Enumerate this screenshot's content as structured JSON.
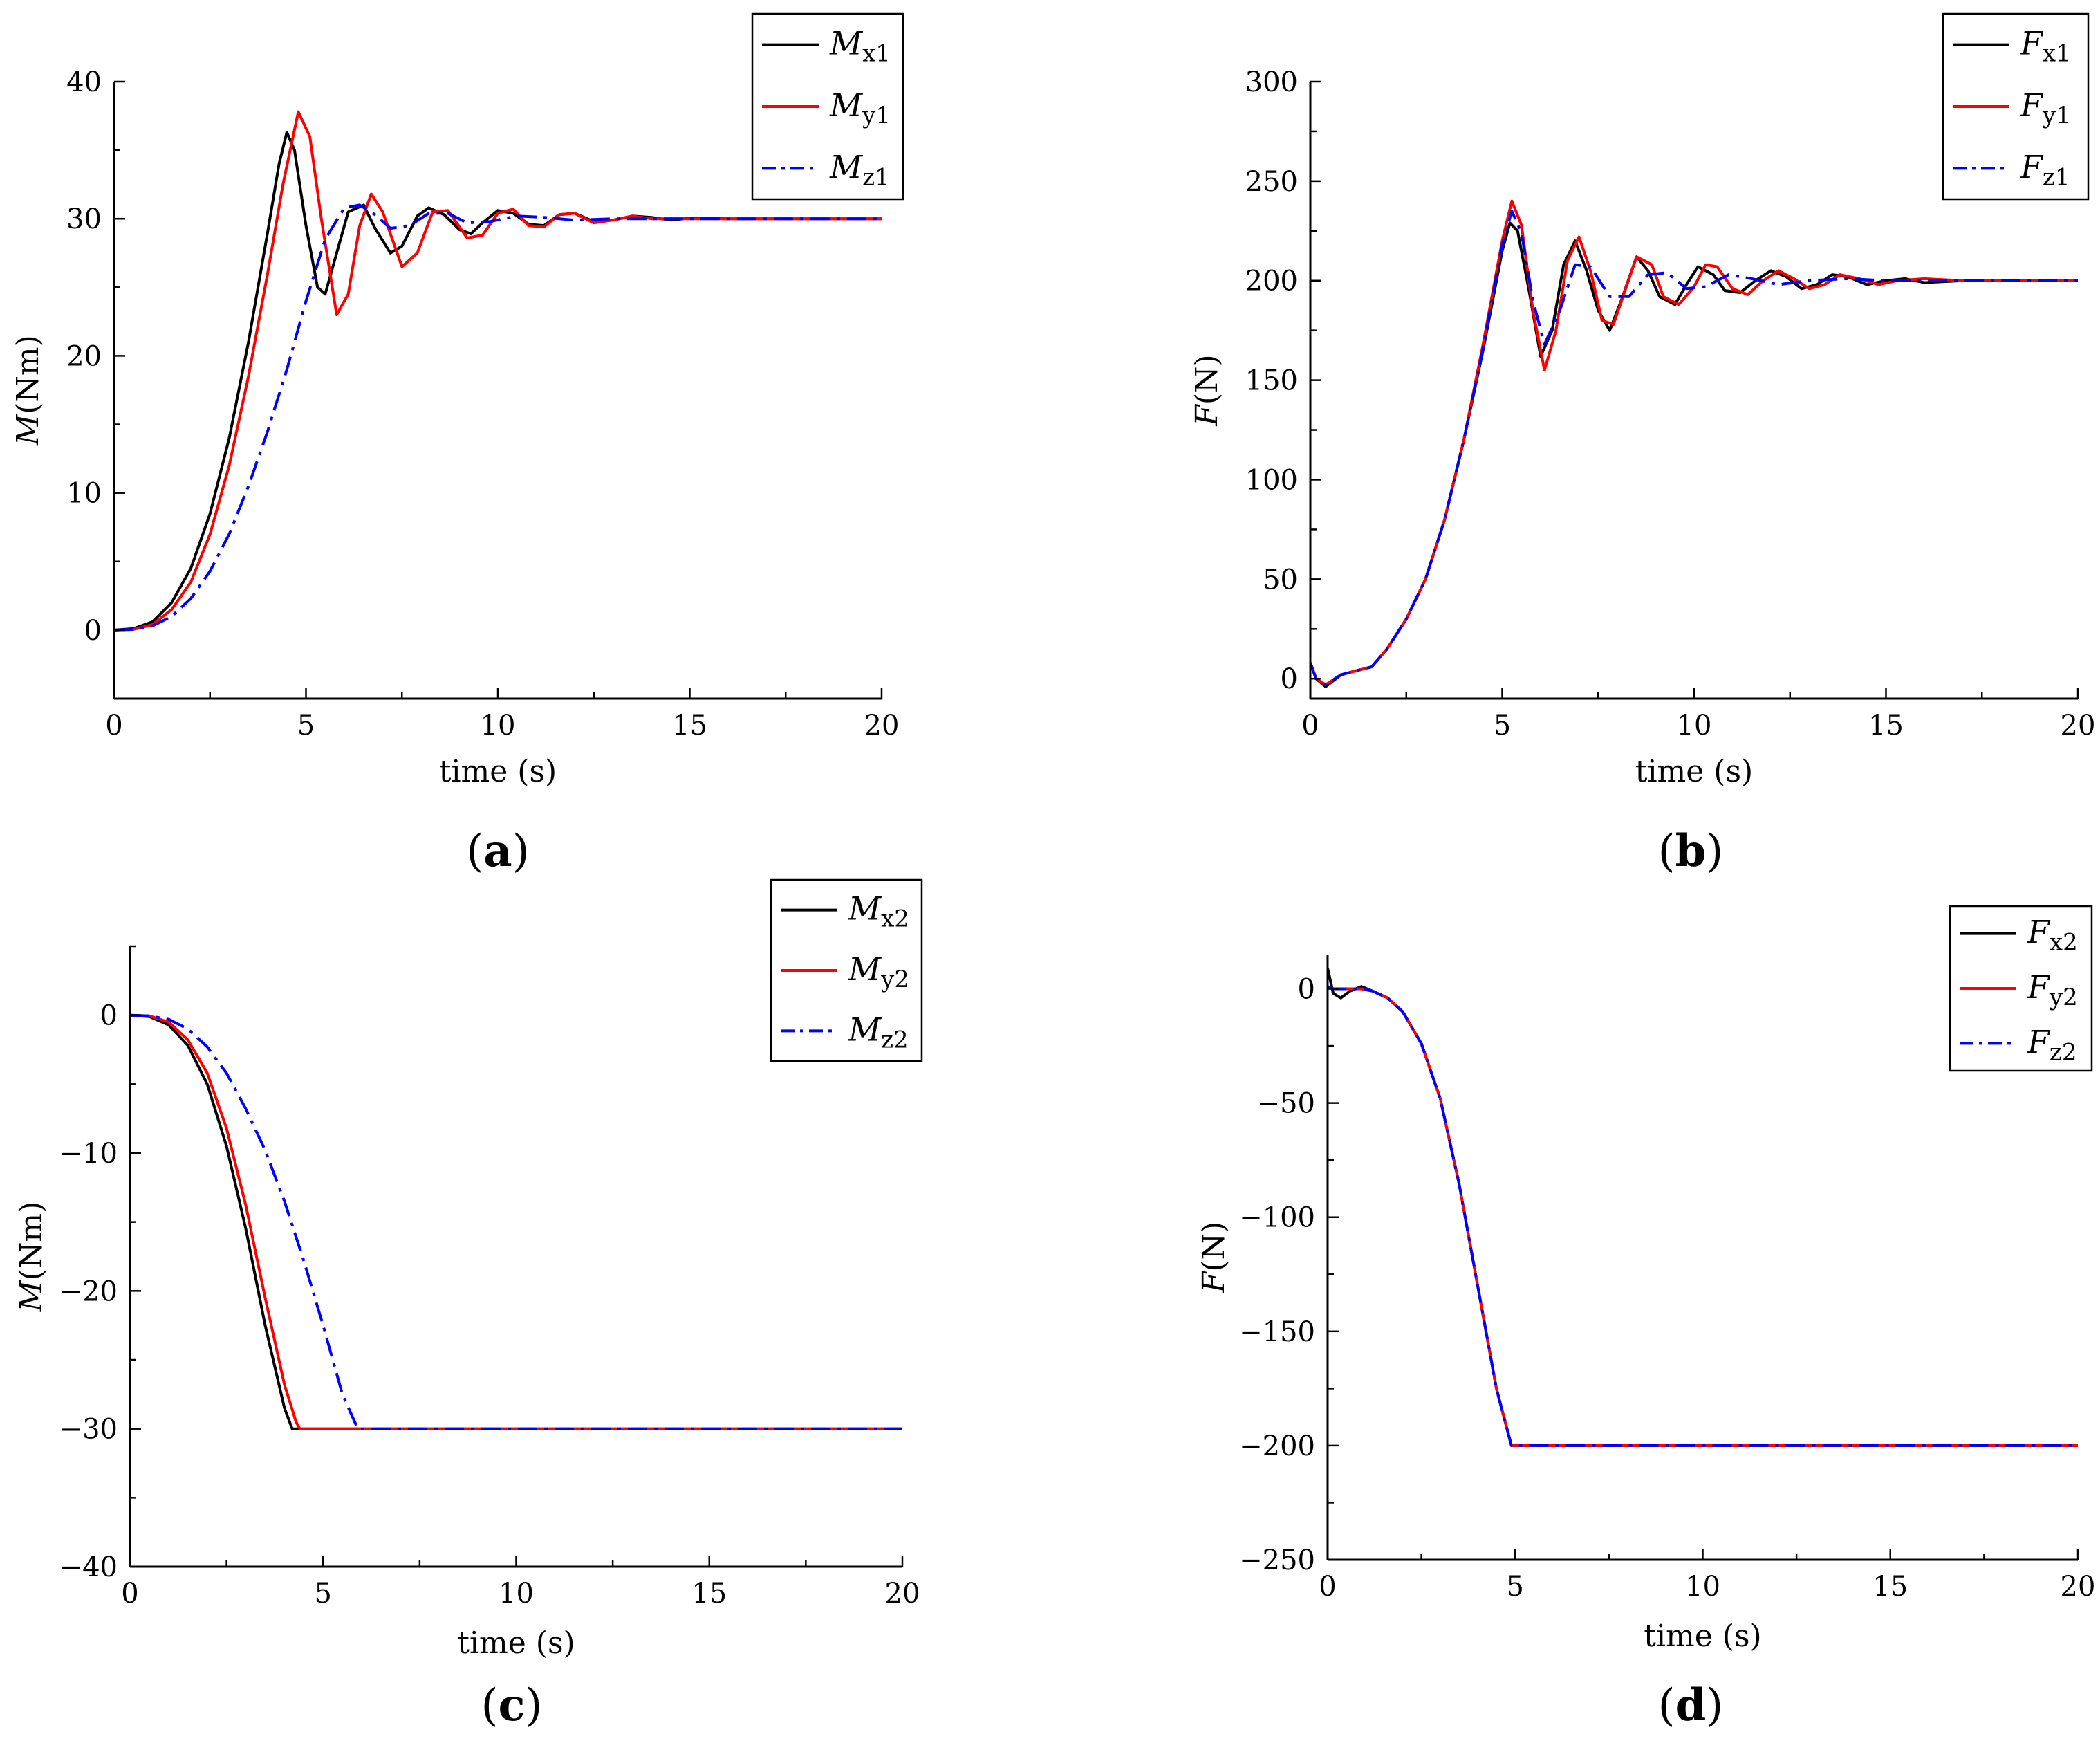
{
  "chart_data": [
    {
      "id": "a",
      "type": "line",
      "panel_label": "a",
      "xlabel": "time (s)",
      "ylabel_var": "M",
      "ylabel_unit": "(Nm)",
      "xlim": [
        0,
        20
      ],
      "ylim": [
        -5,
        40
      ],
      "xticks": [
        0,
        5,
        10,
        15,
        20
      ],
      "yticks": [
        0,
        10,
        20,
        30,
        40
      ],
      "legend_position": "top-right",
      "series": [
        {
          "name": "M",
          "sub": "x1",
          "color": "#000000",
          "dash": "solid",
          "x": [
            0,
            0.5,
            1,
            1.5,
            2,
            2.5,
            3,
            3.5,
            4,
            4.3,
            4.5,
            4.7,
            5,
            5.3,
            5.5,
            5.8,
            6.1,
            6.5,
            6.8,
            7.2,
            7.5,
            7.9,
            8.2,
            8.6,
            9,
            9.3,
            9.6,
            10,
            10.4,
            10.8,
            11.2,
            11.6,
            12,
            12.5,
            13,
            13.5,
            14,
            14.5,
            15,
            16,
            17,
            18,
            19,
            20
          ],
          "y": [
            0,
            0.1,
            0.6,
            2,
            4.5,
            8.5,
            14,
            21,
            29,
            34,
            36.3,
            35,
            29.5,
            25,
            24.5,
            27.5,
            30.5,
            31,
            29.3,
            27.5,
            28,
            30.2,
            30.8,
            30.3,
            29.2,
            28.9,
            29.7,
            30.6,
            30.4,
            29.6,
            29.5,
            30.3,
            30.4,
            29.8,
            29.9,
            30.2,
            30.1,
            29.9,
            30.05,
            30,
            30,
            30,
            30,
            30
          ]
        },
        {
          "name": "M",
          "sub": "y1",
          "color": "#ff0000",
          "dash": "solid",
          "x": [
            0,
            0.5,
            1,
            1.5,
            2,
            2.5,
            3,
            3.5,
            4,
            4.4,
            4.8,
            5.1,
            5.4,
            5.8,
            6.1,
            6.4,
            6.7,
            7,
            7.5,
            7.9,
            8.3,
            8.7,
            9.2,
            9.6,
            10,
            10.4,
            10.8,
            11.2,
            11.6,
            12,
            12.5,
            13,
            13.5,
            14,
            15,
            16,
            17,
            18,
            19,
            20
          ],
          "y": [
            0,
            0.05,
            0.4,
            1.5,
            3.5,
            7,
            12,
            18.5,
            26,
            32.5,
            37.8,
            36,
            30,
            23,
            24.5,
            29.5,
            31.8,
            30.5,
            26.5,
            27.5,
            30.5,
            30.6,
            28.6,
            28.8,
            30.4,
            30.7,
            29.5,
            29.4,
            30.3,
            30.4,
            29.7,
            29.9,
            30.2,
            30,
            30,
            30,
            30,
            30,
            30,
            30
          ]
        },
        {
          "name": "M",
          "sub": "z1",
          "color": "#0000ff",
          "dash": "dashdot",
          "x": [
            0,
            0.5,
            1,
            1.5,
            2,
            2.5,
            3,
            3.5,
            4,
            4.5,
            5,
            5.5,
            6,
            6.4,
            6.8,
            7.2,
            7.7,
            8.2,
            8.7,
            9.2,
            9.8,
            10.5,
            11.2,
            12,
            13,
            14,
            15,
            16,
            17,
            18,
            19,
            20
          ],
          "y": [
            0,
            0.05,
            0.3,
            1,
            2.3,
            4.3,
            7,
            10.5,
            14.5,
            19,
            24,
            28.5,
            30.8,
            31,
            30.3,
            29.3,
            29.5,
            30.4,
            30.4,
            29.7,
            29.8,
            30.2,
            30.1,
            29.9,
            30,
            30,
            30,
            30,
            30,
            30,
            30,
            30
          ]
        }
      ]
    },
    {
      "id": "b",
      "type": "line",
      "panel_label": "b",
      "xlabel": "time (s)",
      "ylabel_var": "F",
      "ylabel_unit": "(N)",
      "xlim": [
        0,
        20
      ],
      "ylim": [
        -10,
        300
      ],
      "xticks": [
        0,
        5,
        10,
        15,
        20
      ],
      "yticks": [
        0,
        50,
        100,
        150,
        200,
        250,
        300
      ],
      "legend_position": "top-right",
      "series": [
        {
          "name": "F",
          "sub": "x1",
          "color": "#000000",
          "dash": "solid",
          "x": [
            0,
            0.15,
            0.4,
            0.8,
            1.2,
            1.6,
            2,
            2.5,
            3,
            3.5,
            4,
            4.5,
            5,
            5.2,
            5.4,
            5.7,
            6,
            6.3,
            6.6,
            6.9,
            7.2,
            7.5,
            7.8,
            8.1,
            8.5,
            8.8,
            9.1,
            9.5,
            9.8,
            10.1,
            10.5,
            10.8,
            11.2,
            11.6,
            12,
            12.4,
            12.8,
            13.2,
            13.6,
            14,
            14.5,
            15,
            15.5,
            16,
            17,
            18,
            19,
            20
          ],
          "y": [
            8,
            0,
            -4,
            2,
            4,
            6,
            15,
            30,
            50,
            80,
            120,
            165,
            215,
            229,
            225,
            195,
            162,
            175,
            208,
            220,
            205,
            185,
            175,
            190,
            212,
            205,
            192,
            188,
            198,
            207,
            203,
            195,
            194,
            200,
            205,
            202,
            196,
            198,
            203,
            202,
            198,
            200,
            201,
            199,
            200,
            200,
            200,
            200
          ]
        },
        {
          "name": "F",
          "sub": "y1",
          "color": "#ff0000",
          "dash": "solid",
          "x": [
            0,
            0.15,
            0.4,
            0.8,
            1.2,
            1.6,
            2,
            2.5,
            3,
            3.5,
            4,
            4.5,
            5,
            5.25,
            5.5,
            5.8,
            6.1,
            6.4,
            6.7,
            7,
            7.3,
            7.6,
            7.9,
            8.2,
            8.5,
            8.9,
            9.2,
            9.6,
            10,
            10.3,
            10.6,
            11,
            11.4,
            11.8,
            12.2,
            12.6,
            13,
            13.4,
            13.8,
            14.3,
            14.8,
            15.3,
            16,
            17,
            18,
            19,
            20
          ],
          "y": [
            8,
            0,
            -3,
            2,
            4,
            6,
            15,
            30,
            50,
            80,
            120,
            168,
            220,
            240,
            228,
            185,
            155,
            175,
            210,
            222,
            205,
            180,
            178,
            195,
            212,
            208,
            192,
            188,
            197,
            208,
            207,
            196,
            193,
            200,
            205,
            201,
            196,
            198,
            203,
            201,
            198,
            200,
            201,
            200,
            200,
            200,
            200
          ]
        },
        {
          "name": "F",
          "sub": "z1",
          "color": "#0000ff",
          "dash": "dashdot",
          "x": [
            0,
            0.15,
            0.4,
            0.8,
            1.2,
            1.6,
            2,
            2.5,
            3,
            3.5,
            4,
            4.5,
            5,
            5.25,
            5.5,
            5.8,
            6.1,
            6.5,
            6.9,
            7.3,
            7.8,
            8.3,
            8.8,
            9.3,
            9.8,
            10.3,
            10.9,
            11.5,
            12.2,
            13,
            14,
            15,
            16,
            17,
            18,
            19,
            20
          ],
          "y": [
            8,
            0,
            -3,
            2,
            4,
            6,
            15,
            30,
            50,
            80,
            120,
            166,
            218,
            235,
            224,
            190,
            168,
            185,
            208,
            207,
            192,
            192,
            203,
            204,
            196,
            197,
            203,
            201,
            198,
            200,
            201,
            200,
            200,
            200,
            200,
            200,
            200
          ]
        }
      ]
    },
    {
      "id": "c",
      "type": "line",
      "panel_label": "c",
      "xlabel": "time (s)",
      "ylabel_var": "M",
      "ylabel_unit": "(Nm)",
      "xlim": [
        0,
        20
      ],
      "ylim": [
        -40,
        5
      ],
      "xticks": [
        0,
        5,
        10,
        15,
        20
      ],
      "yticks": [
        0,
        -10,
        -20,
        -30,
        -40
      ],
      "ytick_labels": [
        "0",
        "−10",
        "−20",
        "−30",
        "−40"
      ],
      "legend_position": "top-right",
      "series": [
        {
          "name": "M",
          "sub": "x2",
          "color": "#000000",
          "dash": "solid",
          "x": [
            0,
            0.5,
            1,
            1.5,
            2,
            2.5,
            3,
            3.5,
            4,
            4.2,
            20
          ],
          "y": [
            0,
            -0.1,
            -0.7,
            -2.2,
            -5,
            -9.5,
            -15.5,
            -22.5,
            -28.5,
            -30,
            -30
          ]
        },
        {
          "name": "M",
          "sub": "y2",
          "color": "#ff0000",
          "dash": "solid",
          "x": [
            0,
            0.5,
            1,
            1.5,
            2,
            2.5,
            3,
            3.5,
            4,
            4.3,
            4.4,
            20
          ],
          "y": [
            0,
            -0.05,
            -0.5,
            -1.8,
            -4.2,
            -8.2,
            -13.8,
            -20.5,
            -26.8,
            -29.5,
            -30,
            -30
          ]
        },
        {
          "name": "M",
          "sub": "z2",
          "color": "#0000ff",
          "dash": "dashdot",
          "x": [
            0,
            0.5,
            1,
            1.5,
            2,
            2.5,
            3,
            3.5,
            4,
            4.5,
            5,
            5.5,
            5.9,
            20
          ],
          "y": [
            0,
            -0.05,
            -0.3,
            -1,
            -2.3,
            -4.2,
            -6.8,
            -9.8,
            -13.5,
            -17.8,
            -22.5,
            -27.5,
            -30,
            -30
          ]
        }
      ]
    },
    {
      "id": "d",
      "type": "line",
      "panel_label": "d",
      "xlabel": "time (s)",
      "ylabel_var": "F",
      "ylabel_unit": "(N)",
      "xlim": [
        0,
        20
      ],
      "ylim": [
        -250,
        15
      ],
      "xticks": [
        0,
        5,
        10,
        15,
        20
      ],
      "yticks": [
        0,
        -50,
        -100,
        -150,
        -200,
        -250
      ],
      "ytick_labels": [
        "0",
        "−50",
        "−100",
        "−150",
        "−200",
        "−250"
      ],
      "legend_position": "top-right",
      "series": [
        {
          "name": "F",
          "sub": "x2",
          "color": "#000000",
          "dash": "solid",
          "x": [
            0,
            0.15,
            0.35,
            0.6,
            0.9,
            1.2,
            1.6,
            2,
            2.5,
            3,
            3.5,
            4,
            4.5,
            4.9,
            5,
            20
          ],
          "y": [
            9,
            -2,
            -4,
            -1,
            1,
            -1,
            -4,
            -10,
            -24,
            -48,
            -85,
            -130,
            -175,
            -200,
            -200,
            -200
          ]
        },
        {
          "name": "F",
          "sub": "y2",
          "color": "#ff0000",
          "dash": "solid",
          "x": [
            0,
            0.15,
            0.35,
            0.6,
            0.9,
            1.2,
            1.6,
            2,
            2.5,
            3,
            3.5,
            4,
            4.5,
            4.9,
            5,
            20
          ],
          "y": [
            1,
            0,
            0,
            0,
            0,
            -1,
            -4,
            -10,
            -24,
            -48,
            -85,
            -130,
            -175,
            -200,
            -200,
            -200
          ]
        },
        {
          "name": "F",
          "sub": "z2",
          "color": "#0000ff",
          "dash": "dashdot",
          "x": [
            0,
            0.15,
            0.35,
            0.6,
            0.9,
            1.2,
            1.6,
            2,
            2.5,
            3,
            3.5,
            4,
            4.5,
            4.9,
            5,
            20
          ],
          "y": [
            1,
            0,
            0,
            0,
            0,
            -1,
            -4,
            -10,
            -24,
            -48,
            -85,
            -130,
            -175,
            -200,
            -200,
            -200
          ]
        }
      ]
    }
  ]
}
